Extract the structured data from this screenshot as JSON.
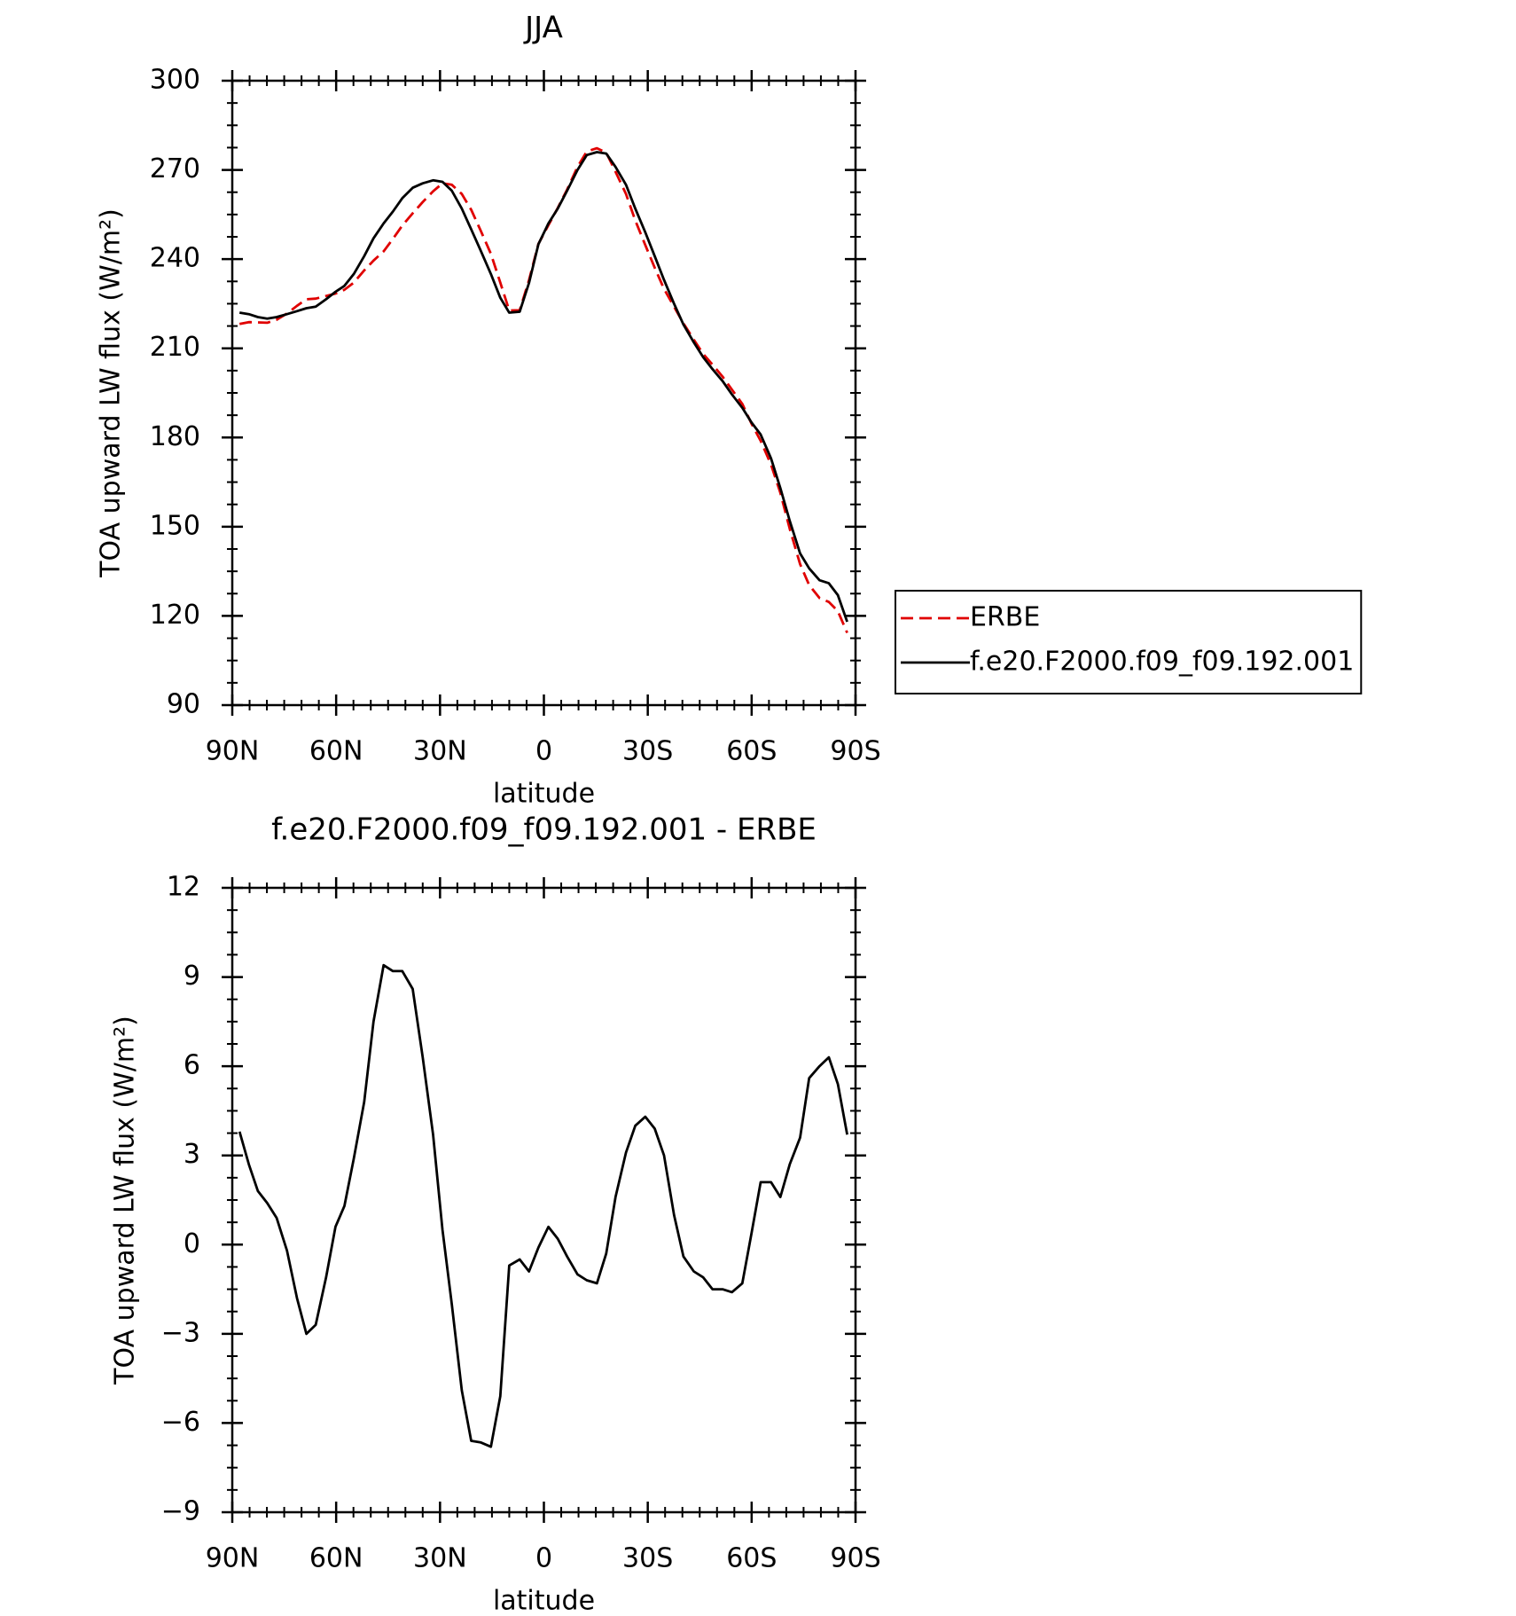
{
  "chart_data": [
    {
      "type": "line",
      "title": "JJA",
      "xlabel": "latitude",
      "ylabel": "TOA upward LW flux (W/m²)",
      "x": [
        87.9,
        85.2,
        82.6,
        79.9,
        77.2,
        74.2,
        71.3,
        68.6,
        65.9,
        62.9,
        60.2,
        57.6,
        54.9,
        51.9,
        49.2,
        46.3,
        43.6,
        40.9,
        37.9,
        35.0,
        32.0,
        29.3,
        26.6,
        23.7,
        21.0,
        18.3,
        15.3,
        12.6,
        10.0,
        7.0,
        4.3,
        1.6,
        -1.3,
        -4.0,
        -6.7,
        -9.7,
        -12.4,
        -15.3,
        -18.0,
        -20.7,
        -23.7,
        -26.4,
        -29.3,
        -32.0,
        -34.7,
        -37.6,
        -40.3,
        -43.3,
        -46.0,
        -48.7,
        -51.6,
        -54.3,
        -57.3,
        -60.0,
        -62.6,
        -65.6,
        -68.3,
        -71.0,
        -74.0,
        -76.6,
        -79.6,
        -82.3,
        -84.9,
        -87.6
      ],
      "series": [
        {
          "name": "ERBE",
          "color": "#e00000",
          "dash": true,
          "values": [
            218.2,
            218.8,
            218.7,
            218.6,
            219.6,
            221.7,
            224.3,
            226.5,
            226.7,
            227.6,
            228.4,
            229.7,
            232.1,
            236.2,
            239.5,
            242.6,
            246.8,
            251.3,
            255.4,
            259.2,
            262.8,
            265.5,
            265.0,
            261.9,
            256.6,
            249.7,
            241.8,
            232.1,
            222.7,
            222.8,
            232.9,
            245.1,
            251.4,
            257.2,
            263.4,
            271.0,
            276.2,
            277.3,
            275.8,
            269.4,
            261.9,
            253.0,
            244.7,
            237.1,
            230.0,
            224.0,
            218.4,
            212.9,
            208.1,
            204.5,
            200.5,
            196.1,
            191.3,
            184.6,
            178.9,
            170.9,
            161.4,
            149.3,
            137.4,
            130.4,
            126.0,
            124.7,
            121.6,
            114.3
          ]
        },
        {
          "name": "f.e20.F2000.f09_f09.192.001",
          "color": "#000000",
          "dash": false,
          "values": [
            222.0,
            221.5,
            220.5,
            220.0,
            220.5,
            221.5,
            222.5,
            223.5,
            224.0,
            226.5,
            229.0,
            231.0,
            235.0,
            241.0,
            247.0,
            252.0,
            256.0,
            260.5,
            264.0,
            265.5,
            266.5,
            266.0,
            263.0,
            257.0,
            250.0,
            243.0,
            235.0,
            227.0,
            222.0,
            222.3,
            232.0,
            245.0,
            252.0,
            257.0,
            263.0,
            270.0,
            275.0,
            276.0,
            275.5,
            271.0,
            265.0,
            257.0,
            249.0,
            241.0,
            233.0,
            225.0,
            218.0,
            212.0,
            207.0,
            203.0,
            199.0,
            194.5,
            190.0,
            185.0,
            181.0,
            173.0,
            163.0,
            152.0,
            141.0,
            136.0,
            132.0,
            131.0,
            127.0,
            118.0
          ]
        }
      ],
      "xlim": [
        90,
        -90
      ],
      "xticks": [
        {
          "value": 90,
          "label": "90N"
        },
        {
          "value": 60,
          "label": "60N"
        },
        {
          "value": 30,
          "label": "30N"
        },
        0,
        {
          "value": -30,
          "label": "30S"
        },
        {
          "value": -60,
          "label": "60S"
        },
        {
          "value": -90,
          "label": "90S"
        }
      ],
      "ylim": [
        90,
        300
      ],
      "yticks": [
        90,
        120,
        150,
        180,
        210,
        240,
        270,
        300
      ],
      "grid": false,
      "legend": "outside right"
    },
    {
      "type": "line",
      "title": "f.e20.F2000.f09_f09.192.001 - ERBE",
      "xlabel": "latitude",
      "ylabel": "TOA upward LW flux (W/m²)",
      "x": [
        87.9,
        85.2,
        82.6,
        79.9,
        77.2,
        74.2,
        71.3,
        68.6,
        65.9,
        62.9,
        60.2,
        57.6,
        54.9,
        51.9,
        49.2,
        46.3,
        43.6,
        40.9,
        37.9,
        35.0,
        32.0,
        29.3,
        26.6,
        23.7,
        21.0,
        18.3,
        15.3,
        12.6,
        10.0,
        7.0,
        4.3,
        1.6,
        -1.3,
        -4.0,
        -6.7,
        -9.7,
        -12.4,
        -15.3,
        -18.0,
        -20.7,
        -23.7,
        -26.4,
        -29.3,
        -32.0,
        -34.7,
        -37.6,
        -40.3,
        -43.3,
        -46.0,
        -48.7,
        -51.6,
        -54.3,
        -57.3,
        -60.0,
        -62.6,
        -65.6,
        -68.3,
        -71.0,
        -74.0,
        -76.6,
        -79.6,
        -82.3,
        -84.9,
        -87.6
      ],
      "series": [
        {
          "color": "#000000",
          "dash": false,
          "values": [
            3.8,
            2.7,
            1.8,
            1.4,
            0.9,
            -0.2,
            -1.8,
            -3.0,
            -2.7,
            -1.1,
            0.6,
            1.3,
            2.9,
            4.8,
            7.5,
            9.4,
            9.2,
            9.2,
            8.6,
            6.3,
            3.7,
            0.5,
            -2.0,
            -4.9,
            -6.6,
            -6.65,
            -6.8,
            -5.1,
            -0.7,
            -0.5,
            -0.9,
            -0.1,
            0.6,
            0.2,
            -0.4,
            -1.0,
            -1.2,
            -1.3,
            -0.3,
            1.6,
            3.1,
            4.0,
            4.3,
            3.9,
            3.0,
            1.0,
            -0.4,
            -0.9,
            -1.1,
            -1.5,
            -1.5,
            -1.6,
            -1.3,
            0.4,
            2.1,
            2.1,
            1.6,
            2.7,
            3.6,
            5.6,
            6.0,
            6.3,
            5.4,
            3.7
          ]
        }
      ],
      "xlim": [
        90,
        -90
      ],
      "xticks": [
        {
          "value": 90,
          "label": "90N"
        },
        {
          "value": 60,
          "label": "60N"
        },
        {
          "value": 30,
          "label": "30N"
        },
        0,
        {
          "value": -30,
          "label": "30S"
        },
        {
          "value": -60,
          "label": "60S"
        },
        {
          "value": -90,
          "label": "90S"
        }
      ],
      "ylim": [
        -9,
        12
      ],
      "yticks": [
        {
          "value": -9,
          "label": "−9"
        },
        {
          "value": -6,
          "label": "−6"
        },
        {
          "value": -3,
          "label": "−3"
        },
        0,
        3,
        6,
        9,
        12
      ],
      "grid": false
    }
  ]
}
